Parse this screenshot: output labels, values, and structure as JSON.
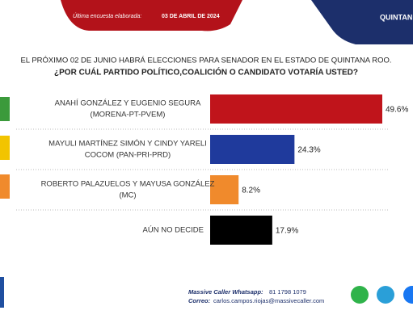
{
  "header": {
    "survey_label": "Última encuesta elaborada:",
    "survey_date": "03 DE ABRIL DE 2024",
    "state": "QUINTAN"
  },
  "chart_data": {
    "type": "bar",
    "orientation": "horizontal",
    "title": "EL PRÓXIMO 02 DE JUNIO HABRÁ ELECCIONES PARA SENADOR EN EL ESTADO DE QUINTANA ROO.",
    "subtitle": "¿POR CUÁL PARTIDO POLÍTICO,COALICIÓN  O CANDIDATO  VOTARÍA USTED?",
    "categories": [
      [
        "ANAHÍ GONZÁLEZ Y EUGENIO SEGURA",
        "(MORENA-PT-PVEM)"
      ],
      [
        "MAYULI MARTÍNEZ SIMÓN Y CINDY YARELI",
        "COCOM (PAN-PRI-PRD)"
      ],
      [
        "ROBERTO PALAZUELOS Y MAYUSA GONZÁLEZ",
        "(MC)"
      ],
      [
        "AÚN NO DECIDE"
      ]
    ],
    "values": [
      49.6,
      24.3,
      8.2,
      17.9
    ],
    "value_labels": [
      "49.6%",
      "24.3%",
      "8.2%",
      "17.9%"
    ],
    "colors": [
      "#c0141b",
      "#1f3a9c",
      "#f08a2c",
      "#000000"
    ]
  },
  "footer": {
    "whatsapp_label": "Massive Caller Whatsapp:",
    "whatsapp": "81 1798 1079",
    "email_label": "Correo:",
    "email": "carlos.campos.riojas@massivecaller.com"
  }
}
